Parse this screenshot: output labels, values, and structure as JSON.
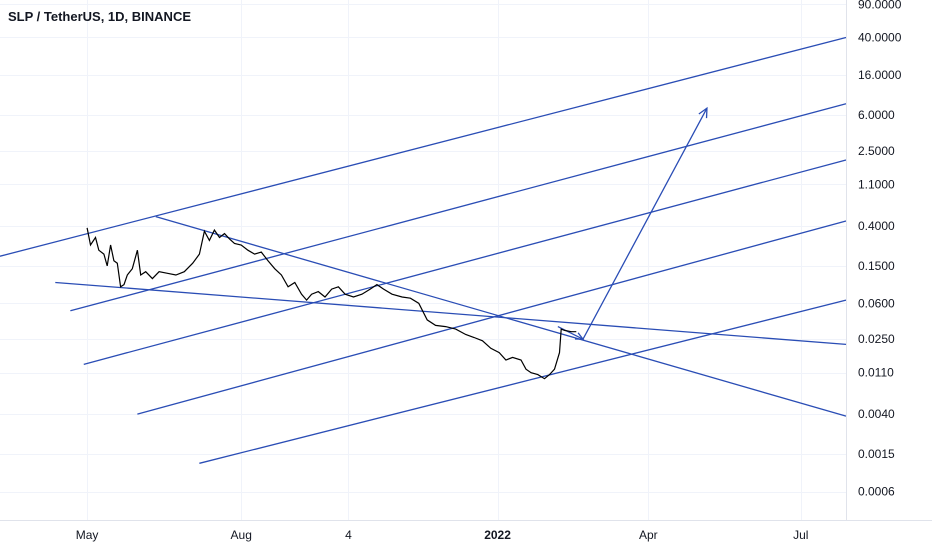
{
  "chart_data": {
    "type": "line",
    "title": "SLP / TetherUS, 1D, BINANCE",
    "y_scale": "log",
    "ylim": [
      0.0003,
      100
    ],
    "x_range": [
      "2021-03-10",
      "2022-07-28"
    ],
    "y_ticks": [
      {
        "label": "90.0000",
        "value": 90
      },
      {
        "label": "40.0000",
        "value": 40
      },
      {
        "label": "16.0000",
        "value": 16
      },
      {
        "label": "6.0000",
        "value": 6
      },
      {
        "label": "2.5000",
        "value": 2.5
      },
      {
        "label": "1.1000",
        "value": 1.1
      },
      {
        "label": "0.4000",
        "value": 0.4
      },
      {
        "label": "0.1500",
        "value": 0.15
      },
      {
        "label": "0.0600",
        "value": 0.06
      },
      {
        "label": "0.0250",
        "value": 0.025
      },
      {
        "label": "0.0110",
        "value": 0.011
      },
      {
        "label": "0.0040",
        "value": 0.004
      },
      {
        "label": "0.0015",
        "value": 0.0015
      },
      {
        "label": "0.0006",
        "value": 0.0006
      }
    ],
    "x_ticks": [
      {
        "label": "May",
        "date": "2021-05-01",
        "bold": false
      },
      {
        "label": "Aug",
        "date": "2021-08-01",
        "bold": false
      },
      {
        "label": "4",
        "date": "2021-10-04",
        "bold": false
      },
      {
        "label": "2022",
        "date": "2022-01-01",
        "bold": true
      },
      {
        "label": "Apr",
        "date": "2022-04-01",
        "bold": false
      },
      {
        "label": "Jul",
        "date": "2022-07-01",
        "bold": false
      }
    ],
    "series": [
      {
        "color": "#000000",
        "points": [
          [
            "2021-05-01",
            0.38
          ],
          [
            "2021-05-03",
            0.25
          ],
          [
            "2021-05-06",
            0.3
          ],
          [
            "2021-05-08",
            0.22
          ],
          [
            "2021-05-11",
            0.2
          ],
          [
            "2021-05-13",
            0.15
          ],
          [
            "2021-05-15",
            0.25
          ],
          [
            "2021-05-17",
            0.17
          ],
          [
            "2021-05-19",
            0.16
          ],
          [
            "2021-05-21",
            0.09
          ],
          [
            "2021-05-23",
            0.095
          ],
          [
            "2021-05-25",
            0.12
          ],
          [
            "2021-05-28",
            0.14
          ],
          [
            "2021-05-31",
            0.22
          ],
          [
            "2021-06-02",
            0.12
          ],
          [
            "2021-06-05",
            0.13
          ],
          [
            "2021-06-09",
            0.11
          ],
          [
            "2021-06-13",
            0.13
          ],
          [
            "2021-06-18",
            0.125
          ],
          [
            "2021-06-23",
            0.12
          ],
          [
            "2021-06-28",
            0.13
          ],
          [
            "2021-07-03",
            0.16
          ],
          [
            "2021-07-07",
            0.2
          ],
          [
            "2021-07-10",
            0.35
          ],
          [
            "2021-07-13",
            0.28
          ],
          [
            "2021-07-16",
            0.36
          ],
          [
            "2021-07-19",
            0.3
          ],
          [
            "2021-07-22",
            0.33
          ],
          [
            "2021-07-25",
            0.29
          ],
          [
            "2021-07-28",
            0.26
          ],
          [
            "2021-08-01",
            0.25
          ],
          [
            "2021-08-05",
            0.22
          ],
          [
            "2021-08-09",
            0.2
          ],
          [
            "2021-08-13",
            0.21
          ],
          [
            "2021-08-17",
            0.17
          ],
          [
            "2021-08-21",
            0.14
          ],
          [
            "2021-08-25",
            0.12
          ],
          [
            "2021-08-29",
            0.09
          ],
          [
            "2021-09-02",
            0.1
          ],
          [
            "2021-09-06",
            0.075
          ],
          [
            "2021-09-09",
            0.065
          ],
          [
            "2021-09-12",
            0.075
          ],
          [
            "2021-09-16",
            0.08
          ],
          [
            "2021-09-20",
            0.07
          ],
          [
            "2021-09-24",
            0.085
          ],
          [
            "2021-09-28",
            0.09
          ],
          [
            "2021-10-02",
            0.075
          ],
          [
            "2021-10-07",
            0.07
          ],
          [
            "2021-10-12",
            0.075
          ],
          [
            "2021-10-17",
            0.085
          ],
          [
            "2021-10-21",
            0.095
          ],
          [
            "2021-10-25",
            0.085
          ],
          [
            "2021-10-30",
            0.075
          ],
          [
            "2021-11-05",
            0.07
          ],
          [
            "2021-11-10",
            0.068
          ],
          [
            "2021-11-15",
            0.06
          ],
          [
            "2021-11-20",
            0.04
          ],
          [
            "2021-11-25",
            0.035
          ],
          [
            "2021-12-01",
            0.034
          ],
          [
            "2021-12-07",
            0.032
          ],
          [
            "2021-12-13",
            0.028
          ],
          [
            "2021-12-18",
            0.026
          ],
          [
            "2021-12-23",
            0.024
          ],
          [
            "2021-12-28",
            0.02
          ],
          [
            "2022-01-02",
            0.018
          ],
          [
            "2022-01-06",
            0.015
          ],
          [
            "2022-01-10",
            0.016
          ],
          [
            "2022-01-15",
            0.015
          ],
          [
            "2022-01-18",
            0.012
          ],
          [
            "2022-01-21",
            0.011
          ],
          [
            "2022-01-25",
            0.0105
          ],
          [
            "2022-01-29",
            0.0095
          ],
          [
            "2022-02-01",
            0.0105
          ],
          [
            "2022-02-04",
            0.012
          ],
          [
            "2022-02-07",
            0.018
          ],
          [
            "2022-02-08",
            0.032
          ],
          [
            "2022-02-10",
            0.031
          ],
          [
            "2022-02-14",
            0.03
          ],
          [
            "2022-02-17",
            0.03
          ]
        ]
      }
    ],
    "drawings": [
      {
        "type": "line",
        "color": "#2a4db5",
        "from": [
          "2021-03-10",
          0.19
        ],
        "to": [
          "2022-07-28",
          40
        ]
      },
      {
        "type": "line",
        "color": "#2a4db5",
        "from": [
          "2021-04-21",
          0.05
        ],
        "to": [
          "2022-07-28",
          7.9
        ]
      },
      {
        "type": "line",
        "color": "#2a4db5",
        "from": [
          "2021-04-29",
          0.0135
        ],
        "to": [
          "2022-07-28",
          2.0
        ]
      },
      {
        "type": "line",
        "color": "#2a4db5",
        "from": [
          "2021-05-31",
          0.004
        ],
        "to": [
          "2022-07-28",
          0.45
        ]
      },
      {
        "type": "line",
        "color": "#2a4db5",
        "from": [
          "2021-07-07",
          0.0012
        ],
        "to": [
          "2022-07-28",
          0.065
        ]
      },
      {
        "type": "line",
        "color": "#2a4db5",
        "from": [
          "2021-06-11",
          0.5
        ],
        "to": [
          "2022-07-28",
          0.0038
        ]
      },
      {
        "type": "line",
        "color": "#2a4db5",
        "from": [
          "2021-04-12",
          0.1
        ],
        "to": [
          "2022-07-28",
          0.022
        ]
      },
      {
        "type": "arrow",
        "color": "#2a4db5",
        "points": [
          [
            "2022-02-06",
            0.034
          ],
          [
            "2022-02-21",
            0.025
          ],
          [
            "2022-05-06",
            7.1
          ]
        ]
      }
    ]
  }
}
